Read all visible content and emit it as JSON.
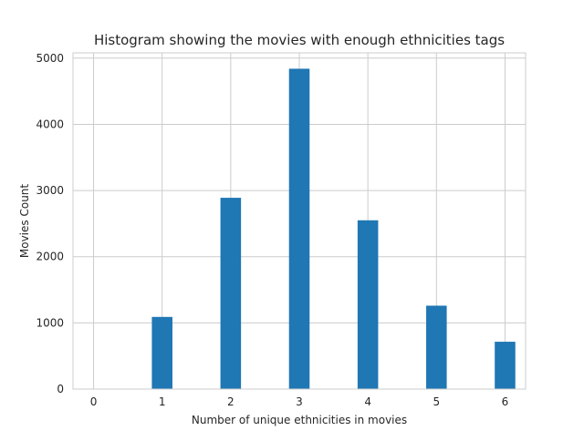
{
  "chart_data": {
    "type": "bar",
    "title": "Histogram showing the movies with enough ethnicities tags",
    "xlabel": "Number of unique ethnicities in movies",
    "ylabel": "Movies Count",
    "x": [
      1,
      2,
      3,
      4,
      5,
      6
    ],
    "values": [
      1090,
      2890,
      4840,
      2550,
      1260,
      715
    ],
    "bar_width": 0.3,
    "xlim": [
      -0.3,
      6.3
    ],
    "ylim": [
      0,
      5080
    ],
    "xticks": [
      0,
      1,
      2,
      3,
      4,
      5,
      6
    ],
    "yticks": [
      0,
      1000,
      2000,
      3000,
      4000,
      5000
    ],
    "grid": true,
    "legend": "none",
    "bar_color": "#1f77b4",
    "grid_color": "#cccccc",
    "spine_color": "#cccccc"
  }
}
